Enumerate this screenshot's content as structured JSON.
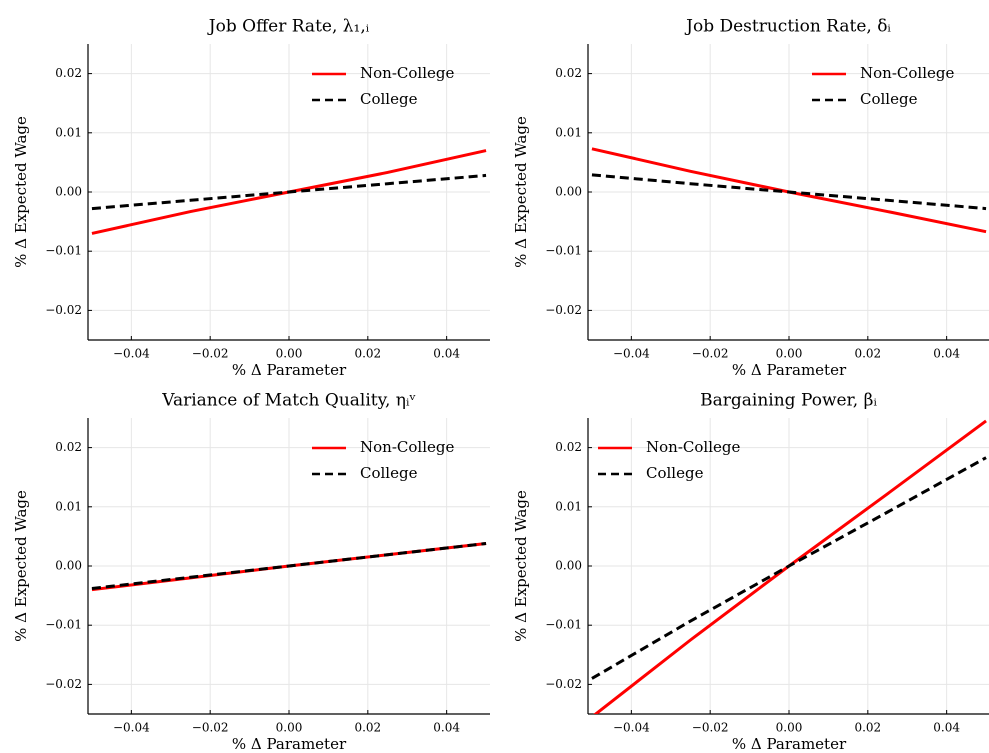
{
  "chart_data": [
    {
      "type": "line",
      "title": "Job Offer Rate, λ₁,ᵢ",
      "xlabel": "% Δ Parameter",
      "ylabel": "% Δ Expected Wage",
      "x": [
        -0.05,
        -0.025,
        0,
        0.025,
        0.05
      ],
      "series": [
        {
          "name": "Non-College",
          "color": "#ff0000",
          "dash": false,
          "values": [
            -0.007,
            -0.0033,
            0,
            0.0033,
            0.007
          ]
        },
        {
          "name": "College",
          "color": "#000000",
          "dash": true,
          "values": [
            -0.0028,
            -0.0014,
            0,
            0.0014,
            0.0028
          ]
        }
      ],
      "xlim": [
        -0.051,
        0.051
      ],
      "ylim": [
        -0.025,
        0.025
      ],
      "xticks": [
        {
          "value": -0.04,
          "label": "−0.04"
        },
        {
          "value": -0.02,
          "label": "−0.02"
        },
        {
          "value": 0,
          "label": "0.00"
        },
        0.02,
        0.04
      ],
      "yticks": [
        {
          "value": -0.02,
          "label": "−0.02"
        },
        {
          "value": -0.01,
          "label": "−0.01"
        },
        {
          "value": 0,
          "label": "0.00"
        },
        0.01,
        0.02
      ],
      "grid": true,
      "legend": "upper-right"
    },
    {
      "type": "line",
      "title": "Job Destruction Rate, δᵢ",
      "xlabel": "% Δ Parameter",
      "ylabel": "% Δ Expected Wage",
      "x": [
        -0.05,
        -0.025,
        0,
        0.025,
        0.05
      ],
      "series": [
        {
          "name": "Non-College",
          "color": "#ff0000",
          "dash": false,
          "values": [
            0.0073,
            0.0035,
            0,
            -0.0033,
            -0.0067
          ]
        },
        {
          "name": "College",
          "color": "#000000",
          "dash": true,
          "values": [
            0.0029,
            0.0014,
            0,
            -0.0014,
            -0.0028
          ]
        }
      ],
      "xlim": [
        -0.051,
        0.051
      ],
      "ylim": [
        -0.025,
        0.025
      ],
      "xticks": [
        {
          "value": -0.04,
          "label": "−0.04"
        },
        {
          "value": -0.02,
          "label": "−0.02"
        },
        {
          "value": 0,
          "label": "0.00"
        },
        0.02,
        0.04
      ],
      "yticks": [
        {
          "value": -0.02,
          "label": "−0.02"
        },
        {
          "value": -0.01,
          "label": "−0.01"
        },
        {
          "value": 0,
          "label": "0.00"
        },
        0.01,
        0.02
      ],
      "grid": true,
      "legend": "upper-right"
    },
    {
      "type": "line",
      "title": "Variance of Match Quality, ηᵢᵛ",
      "xlabel": "% Δ Parameter",
      "ylabel": "% Δ Expected Wage",
      "x": [
        -0.05,
        -0.025,
        0,
        0.025,
        0.05
      ],
      "series": [
        {
          "name": "Non-College",
          "color": "#ff0000",
          "dash": false,
          "values": [
            -0.004,
            -0.002,
            0,
            0.0019,
            0.0038
          ]
        },
        {
          "name": "College",
          "color": "#000000",
          "dash": true,
          "values": [
            -0.0038,
            -0.0019,
            0,
            0.0019,
            0.0038
          ]
        }
      ],
      "xlim": [
        -0.051,
        0.051
      ],
      "ylim": [
        -0.025,
        0.025
      ],
      "xticks": [
        {
          "value": -0.04,
          "label": "−0.04"
        },
        {
          "value": -0.02,
          "label": "−0.02"
        },
        {
          "value": 0,
          "label": "0.00"
        },
        0.02,
        0.04
      ],
      "yticks": [
        {
          "value": -0.02,
          "label": "−0.02"
        },
        {
          "value": -0.01,
          "label": "−0.01"
        },
        {
          "value": 0,
          "label": "0.00"
        },
        0.01,
        0.02
      ],
      "grid": true,
      "legend": "upper-right"
    },
    {
      "type": "line",
      "title": "Bargaining Power, βᵢ",
      "xlabel": "% Δ Parameter",
      "ylabel": "% Δ Expected Wage",
      "x": [
        -0.05,
        -0.025,
        0,
        0.025,
        0.05
      ],
      "series": [
        {
          "name": "Non-College",
          "color": "#ff0000",
          "dash": false,
          "values": [
            -0.0255,
            -0.0125,
            0,
            0.0122,
            0.0245
          ]
        },
        {
          "name": "College",
          "color": "#000000",
          "dash": true,
          "values": [
            -0.019,
            -0.0093,
            0,
            0.0091,
            0.0183
          ]
        }
      ],
      "xlim": [
        -0.051,
        0.051
      ],
      "ylim": [
        -0.025,
        0.025
      ],
      "xticks": [
        {
          "value": -0.04,
          "label": "−0.04"
        },
        {
          "value": -0.02,
          "label": "−0.02"
        },
        {
          "value": 0,
          "label": "0.00"
        },
        0.02,
        0.04
      ],
      "yticks": [
        {
          "value": -0.02,
          "label": "−0.02"
        },
        {
          "value": -0.01,
          "label": "−0.01"
        },
        {
          "value": 0,
          "label": "0.00"
        },
        0.01,
        0.02
      ],
      "grid": true,
      "legend": "upper-left"
    }
  ]
}
